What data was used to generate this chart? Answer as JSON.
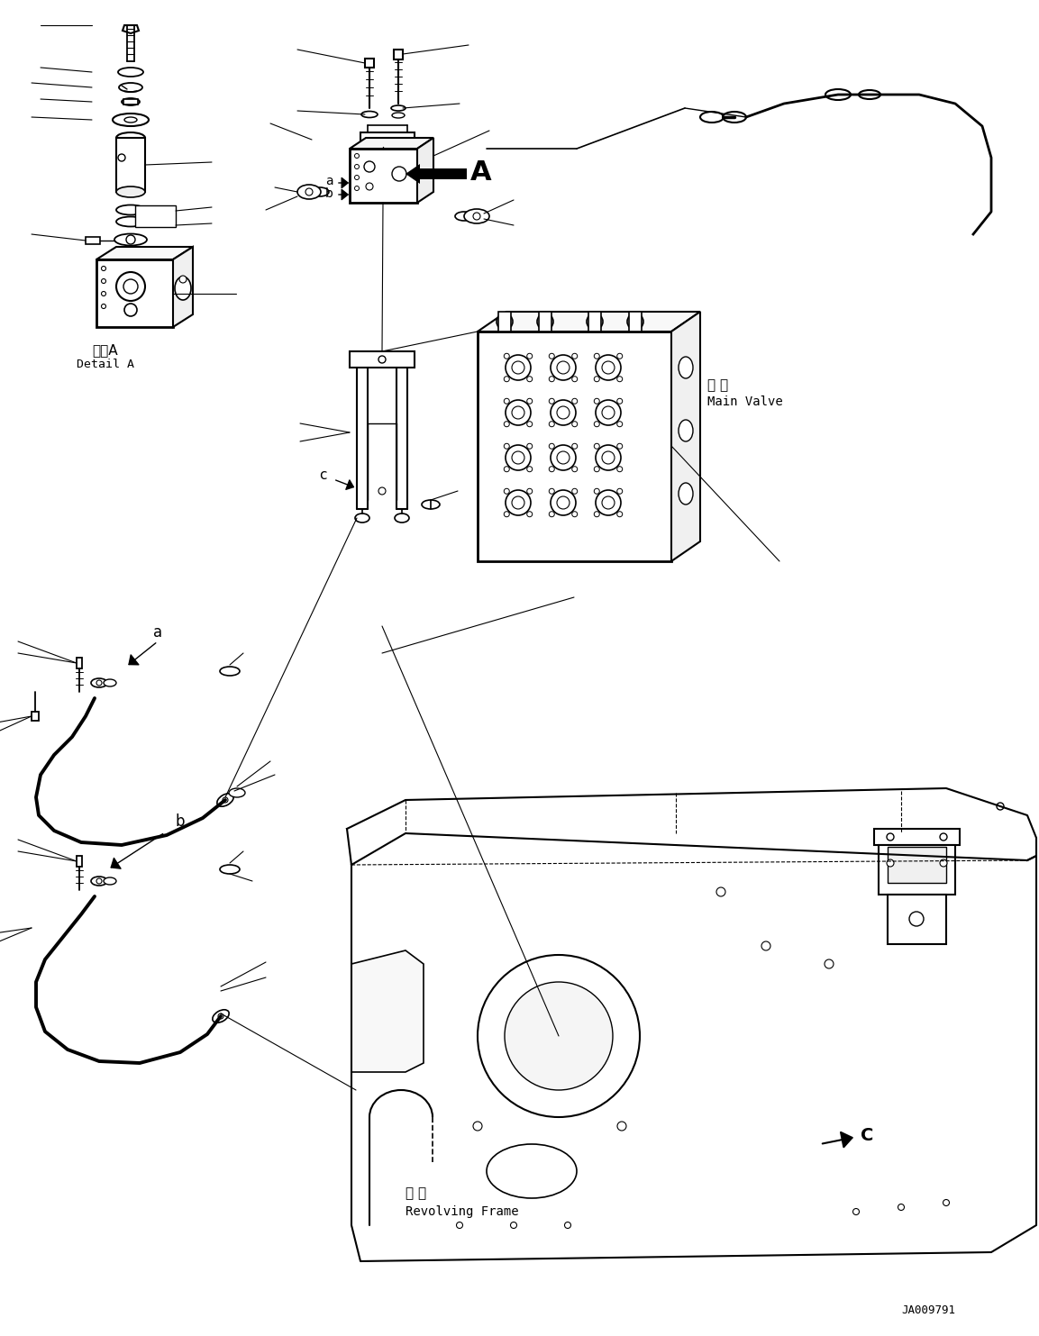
{
  "bg_color": "#ffffff",
  "fig_width": 11.53,
  "fig_height": 14.83,
  "watermark": "JA009791",
  "detail_a_chinese": "详图A",
  "detail_a_english": "Detail A",
  "main_valve_chinese": "主 阀",
  "main_valve_english": "Main Valve",
  "revolving_frame_chinese": "转 台",
  "revolving_frame_english": "Revolving Frame",
  "label_A": "A",
  "label_a": "a",
  "label_b": "b",
  "label_C_upper": "C",
  "label_c_lower": "c"
}
